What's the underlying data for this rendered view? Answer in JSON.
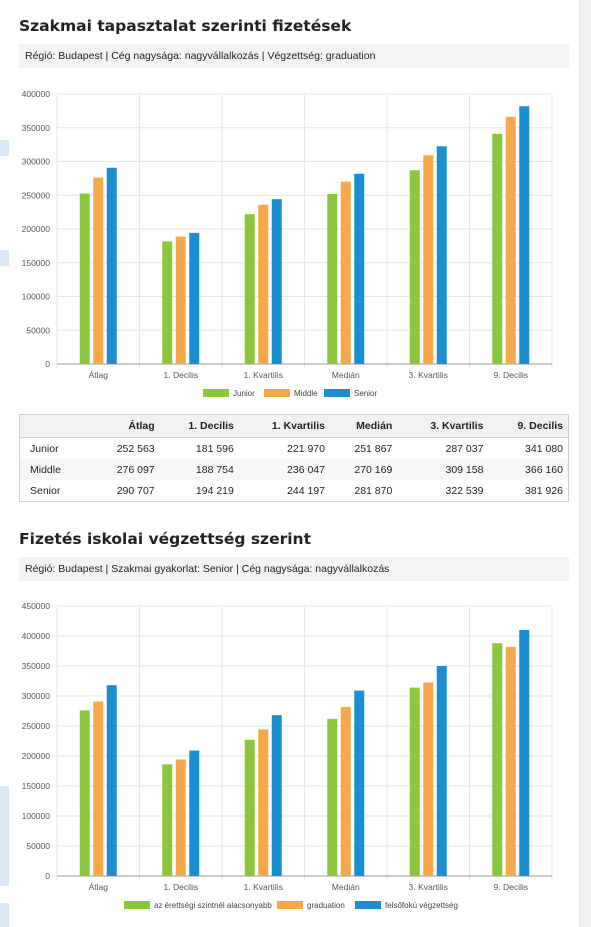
{
  "section1": {
    "title": "Szakmai tapasztalat szerinti fizetések",
    "filter": "Régió: Budapest | Cég nagysága: nagyvállalkozás | Végzettség: graduation"
  },
  "section2": {
    "title": "Fizetés iskolai végzettség szerint",
    "filter": "Régió: Budapest | Szakmai gyakorlat: Senior | Cég nagysága: nagyvállalkozás"
  },
  "colors": {
    "green": "#8cc63f",
    "orange": "#f7a84a",
    "blue": "#1a8ed1"
  },
  "chart_data": [
    {
      "type": "bar",
      "categories": [
        "Átlag",
        "1. Decilis",
        "1. Kvartilis",
        "Medián",
        "3. Kvartilis",
        "9. Decilis"
      ],
      "series": [
        {
          "name": "Junior",
          "values": [
            252563,
            181596,
            221970,
            251867,
            287037,
            341080
          ]
        },
        {
          "name": "Middle",
          "values": [
            276097,
            188754,
            236047,
            270169,
            309158,
            366160
          ]
        },
        {
          "name": "Senior",
          "values": [
            290707,
            194219,
            244197,
            281870,
            322539,
            381926
          ]
        }
      ],
      "yticks": [
        "0",
        "50000",
        "100000",
        "150000",
        "200000",
        "250000",
        "300000",
        "350000",
        "400000"
      ],
      "ylim": [
        0,
        400000
      ],
      "grid": true,
      "legend": "bottom"
    },
    {
      "type": "bar",
      "categories": [
        "Átlag",
        "1. Decilis",
        "1. Kvartilis",
        "Medián",
        "3. Kvartilis",
        "9. Decilis"
      ],
      "series": [
        {
          "name": "az érettségi szintnél alacsonyabb",
          "values": [
            276000,
            186000,
            227000,
            262000,
            314000,
            388000
          ]
        },
        {
          "name": "graduation",
          "values": [
            290707,
            194219,
            244197,
            281870,
            322539,
            381926
          ]
        },
        {
          "name": "felsőfokú végzettség",
          "values": [
            318000,
            209000,
            268000,
            309000,
            350000,
            410000
          ]
        }
      ],
      "yticks": [
        "0",
        "50000",
        "100000",
        "150000",
        "200000",
        "250000",
        "300000",
        "350000",
        "400000",
        "450000"
      ],
      "ylim": [
        0,
        450000
      ],
      "grid": true,
      "legend": "bottom"
    }
  ],
  "table": {
    "headers": [
      "Átlag",
      "1. Decilis",
      "1. Kvartilis",
      "Medián",
      "3. Kvartilis",
      "9. Decilis"
    ],
    "rows": [
      {
        "label": "Junior",
        "cells": [
          "252 563",
          "181 596",
          "221 970",
          "251 867",
          "287 037",
          "341 080"
        ]
      },
      {
        "label": "Middle",
        "cells": [
          "276 097",
          "188 754",
          "236 047",
          "270 169",
          "309 158",
          "366 160"
        ]
      },
      {
        "label": "Senior",
        "cells": [
          "290 707",
          "194 219",
          "244 197",
          "281 870",
          "322 539",
          "381 926"
        ]
      }
    ]
  }
}
